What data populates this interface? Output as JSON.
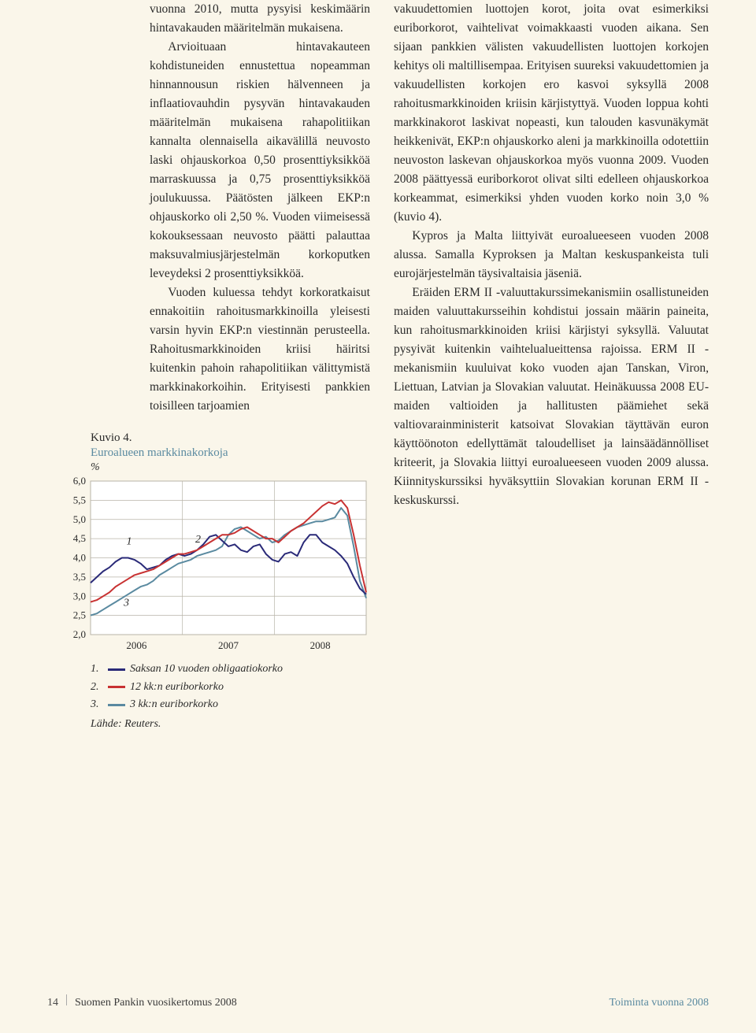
{
  "left_column": {
    "p1": "vuonna 2010, mutta pysyisi keskimäärin hintavakauden määritelmän mukaisena.",
    "p2": "Arvioituaan hintavakauteen kohdistuneiden ennustettua nopeamman hinnannousun riskien hälvenneen ja inflaatiovauhdin pysyvän hintavakauden määritelmän mukaisena rahapolitiikan kannalta olennaisella aikavälillä neuvosto laski ohjauskorkoa 0,50 prosenttiyksikköä marraskuussa ja 0,75 prosenttiyksikköä joulukuussa. Päätösten jälkeen EKP:n ohjauskorko oli 2,50 %. Vuoden viimeisessä kokouksessaan neuvosto päätti palauttaa maksuvalmiusjärjestelmän korkoputken leveydeksi 2 prosenttiyksikköä.",
    "p3": "Vuoden kuluessa tehdyt korkoratkaisut ennakoitiin rahoitusmarkkinoilla yleisesti varsin hyvin EKP:n viestinnän perusteella. Rahoitusmarkkinoiden kriisi häiritsi kuitenkin pahoin rahapolitiikan välittymistä markkinakorkoihin. Erityisesti pankkien toisilleen tarjoamien"
  },
  "right_column": {
    "p1": "vakuudettomien luottojen korot, joita ovat esimerkiksi euriborkorot, vaihtelivat voimakkaasti vuoden aikana. Sen sijaan pankkien välisten vakuudellisten luottojen korkojen kehitys oli maltillisempaa. Erityisen suureksi vakuudettomien ja vakuudellisten korkojen ero kasvoi syksyllä 2008 rahoitusmarkkinoiden kriisin kärjistyttyä. Vuoden loppua kohti markkinakorot laskivat nopeasti, kun talouden kasvunäkymät heikkenivät, EKP:n ohjauskorko aleni ja markkinoilla odotettiin neuvoston laskevan ohjauskorkoa myös vuonna 2009. Vuoden 2008 päättyessä euriborkorot olivat silti edelleen ohjauskorkoa korkeammat, esimerkiksi yhden vuoden korko noin 3,0 % (kuvio 4).",
    "p2": "Kypros ja Malta liittyivät euroalueeseen vuoden 2008 alussa. Samalla Kyproksen ja Maltan keskuspankeista tuli eurojärjestelmän täysivaltaisia jäseniä.",
    "p3": "Eräiden ERM II -valuuttakurssimekanismiin osallistuneiden maiden valuuttakursseihin kohdistui jossain määrin paineita, kun rahoitusmarkkinoiden kriisi kärjistyi syksyllä. Valuutat pysyivät kuitenkin vaihtelualueittensa rajoissa. ERM II -mekanismiin kuuluivat koko vuoden ajan Tanskan, Viron, Liettuan, Latvian ja Slovakian valuutat. Heinäkuussa 2008 EU-maiden valtioiden ja hallitusten päämiehet sekä valtiovarainministerit katsoivat Slovakian täyttävän euron käyttöönoton edellyttämät taloudelliset ja lainsäädännölliset kriteerit, ja Slovakia liittyi euroalueeseen vuoden 2009 alussa. Kiinnityskurssiksi hyväksyttiin Slovakian korunan ERM II -keskuskurssi."
  },
  "chart": {
    "title": "Kuvio 4.",
    "subtitle": "Euroalueen markkinakorkoja",
    "unit": "%",
    "ylim": [
      2.0,
      6.0
    ],
    "ytick_step": 0.5,
    "yticks": [
      "6,0",
      "5,5",
      "5,0",
      "4,5",
      "4,0",
      "3,5",
      "3,0",
      "2,5",
      "2,0"
    ],
    "xticks": [
      "2006",
      "2007",
      "2008"
    ],
    "background": "#f4f0e0",
    "plot_bg": "#ffffff",
    "grid_color": "#b8b4a8",
    "series_labels": {
      "s1": "1",
      "s2": "2",
      "s3": "3"
    },
    "legend": {
      "l1_num": "1.",
      "l1_text": "Saksan 10 vuoden obligaatiokorko",
      "l2_num": "2.",
      "l2_text": "12 kk:n euriborkorko",
      "l3_num": "3.",
      "l3_text": "3 kk:n euriborkorko",
      "source": "Lähde: Reuters."
    },
    "colors": {
      "s1": "#2a2a78",
      "s2": "#c83232",
      "s3": "#5a8aa0"
    },
    "series": {
      "s1": [
        3.35,
        3.5,
        3.65,
        3.75,
        3.9,
        4.0,
        4.0,
        3.95,
        3.85,
        3.7,
        3.75,
        3.8,
        3.95,
        4.05,
        4.1,
        4.05,
        4.1,
        4.2,
        4.35,
        4.55,
        4.6,
        4.45,
        4.3,
        4.35,
        4.2,
        4.15,
        4.3,
        4.35,
        4.1,
        3.95,
        3.9,
        4.1,
        4.15,
        4.05,
        4.4,
        4.6,
        4.6,
        4.4,
        4.3,
        4.2,
        4.05,
        3.85,
        3.5,
        3.2,
        3.05
      ],
      "s2": [
        2.85,
        2.9,
        3.0,
        3.1,
        3.25,
        3.35,
        3.45,
        3.55,
        3.6,
        3.65,
        3.7,
        3.8,
        3.9,
        4.0,
        4.1,
        4.1,
        4.15,
        4.2,
        4.3,
        4.4,
        4.5,
        4.6,
        4.6,
        4.65,
        4.75,
        4.8,
        4.7,
        4.6,
        4.5,
        4.5,
        4.4,
        4.55,
        4.7,
        4.8,
        4.9,
        5.05,
        5.2,
        5.35,
        5.45,
        5.4,
        5.5,
        5.3,
        4.6,
        3.8,
        3.1
      ],
      "s3": [
        2.5,
        2.55,
        2.65,
        2.75,
        2.85,
        2.95,
        3.05,
        3.15,
        3.25,
        3.3,
        3.4,
        3.55,
        3.65,
        3.75,
        3.85,
        3.9,
        3.95,
        4.05,
        4.1,
        4.15,
        4.2,
        4.3,
        4.6,
        4.75,
        4.8,
        4.7,
        4.6,
        4.5,
        4.55,
        4.4,
        4.45,
        4.6,
        4.7,
        4.8,
        4.85,
        4.9,
        4.95,
        4.95,
        5.0,
        5.05,
        5.3,
        5.1,
        4.3,
        3.4,
        2.95
      ]
    }
  },
  "footer": {
    "page_number": "14",
    "left_title": "Suomen Pankin vuosikertomus 2008",
    "right_title": "Toiminta vuonna 2008"
  }
}
